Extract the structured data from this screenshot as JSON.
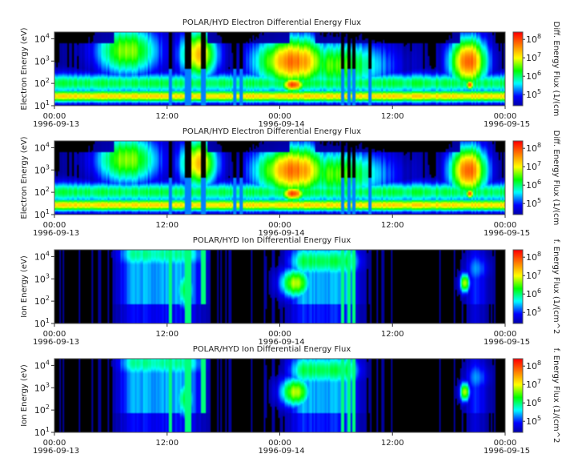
{
  "colors": {
    "background": "#ffffff",
    "colormap": [
      "#000000",
      "#00008b",
      "#0000ff",
      "#00ffff",
      "#00ff00",
      "#ffff00",
      "#ff7f00",
      "#ff0000"
    ]
  },
  "chart_data": [
    {
      "type": "heatmap",
      "title": "POLAR/HYD  Electron Differential Energy Flux",
      "ylabel": "Electron Energy (eV)",
      "yscale": "log",
      "ylim": [
        10,
        20000
      ],
      "yticks": [
        "10^1",
        "10^2",
        "10^3",
        "10^4"
      ],
      "x_ticks_time": [
        "00:00",
        "12:00",
        "00:00",
        "12:00",
        "00:00"
      ],
      "x_ticks_date": [
        "1996-09-13",
        "",
        "1996-09-14",
        "",
        "1996-09-15"
      ],
      "xlim": [
        "1996-09-13 00:00",
        "1996-09-15 00:00"
      ],
      "colorbar_label": "Diff. Energy Flux (1/(cm",
      "colorbar_ticks": [
        "10^5",
        "10^6",
        "10^7",
        "10^8"
      ],
      "colorbar_range_log10": [
        4.4,
        8.4
      ],
      "species": "electron"
    },
    {
      "type": "heatmap",
      "title": "POLAR/HYD  Electron Differential Energy Flux",
      "ylabel": "Electron Energy (eV)",
      "yscale": "log",
      "ylim": [
        10,
        20000
      ],
      "yticks": [
        "10^1",
        "10^2",
        "10^3",
        "10^4"
      ],
      "x_ticks_time": [
        "00:00",
        "12:00",
        "00:00",
        "12:00",
        "00:00"
      ],
      "x_ticks_date": [
        "1996-09-13",
        "",
        "1996-09-14",
        "",
        "1996-09-15"
      ],
      "xlim": [
        "1996-09-13 00:00",
        "1996-09-15 00:00"
      ],
      "colorbar_label": "Diff. Energy Flux (1/(cm",
      "colorbar_ticks": [
        "10^5",
        "10^6",
        "10^7",
        "10^8"
      ],
      "colorbar_range_log10": [
        4.4,
        8.4
      ],
      "species": "electron"
    },
    {
      "type": "heatmap",
      "title": "POLAR/HYD  Ion Differential Energy Flux",
      "ylabel": "Ion Energy (eV)",
      "yscale": "log",
      "ylim": [
        10,
        20000
      ],
      "yticks": [
        "10^1",
        "10^2",
        "10^3",
        "10^4"
      ],
      "x_ticks_time": [
        "00:00",
        "12:00",
        "00:00",
        "12:00",
        "00:00"
      ],
      "x_ticks_date": [
        "1996-09-13",
        "",
        "1996-09-14",
        "",
        "1996-09-15"
      ],
      "xlim": [
        "1996-09-13 00:00",
        "1996-09-15 00:00"
      ],
      "colorbar_label": "f. Energy Flux (1/(cm^2",
      "colorbar_ticks": [
        "10^5",
        "10^6",
        "10^7",
        "10^8"
      ],
      "colorbar_range_log10": [
        4.4,
        8.4
      ],
      "species": "ion"
    },
    {
      "type": "heatmap",
      "title": "POLAR/HYD  Ion Differential Energy Flux",
      "ylabel": "Ion Energy (eV)",
      "yscale": "log",
      "ylim": [
        10,
        20000
      ],
      "yticks": [
        "10^1",
        "10^2",
        "10^3",
        "10^4"
      ],
      "x_ticks_time": [
        "00:00",
        "12:00",
        "00:00",
        "12:00",
        "00:00"
      ],
      "x_ticks_date": [
        "1996-09-13",
        "",
        "1996-09-14",
        "",
        "1996-09-15"
      ],
      "xlim": [
        "1996-09-13 00:00",
        "1996-09-15 00:00"
      ],
      "colorbar_label": "f. Energy Flux (1/(cm^2",
      "colorbar_ticks": [
        "10^5",
        "10^6",
        "10^7",
        "10^8"
      ],
      "colorbar_range_log10": [
        4.4,
        8.4
      ],
      "species": "ion"
    }
  ]
}
